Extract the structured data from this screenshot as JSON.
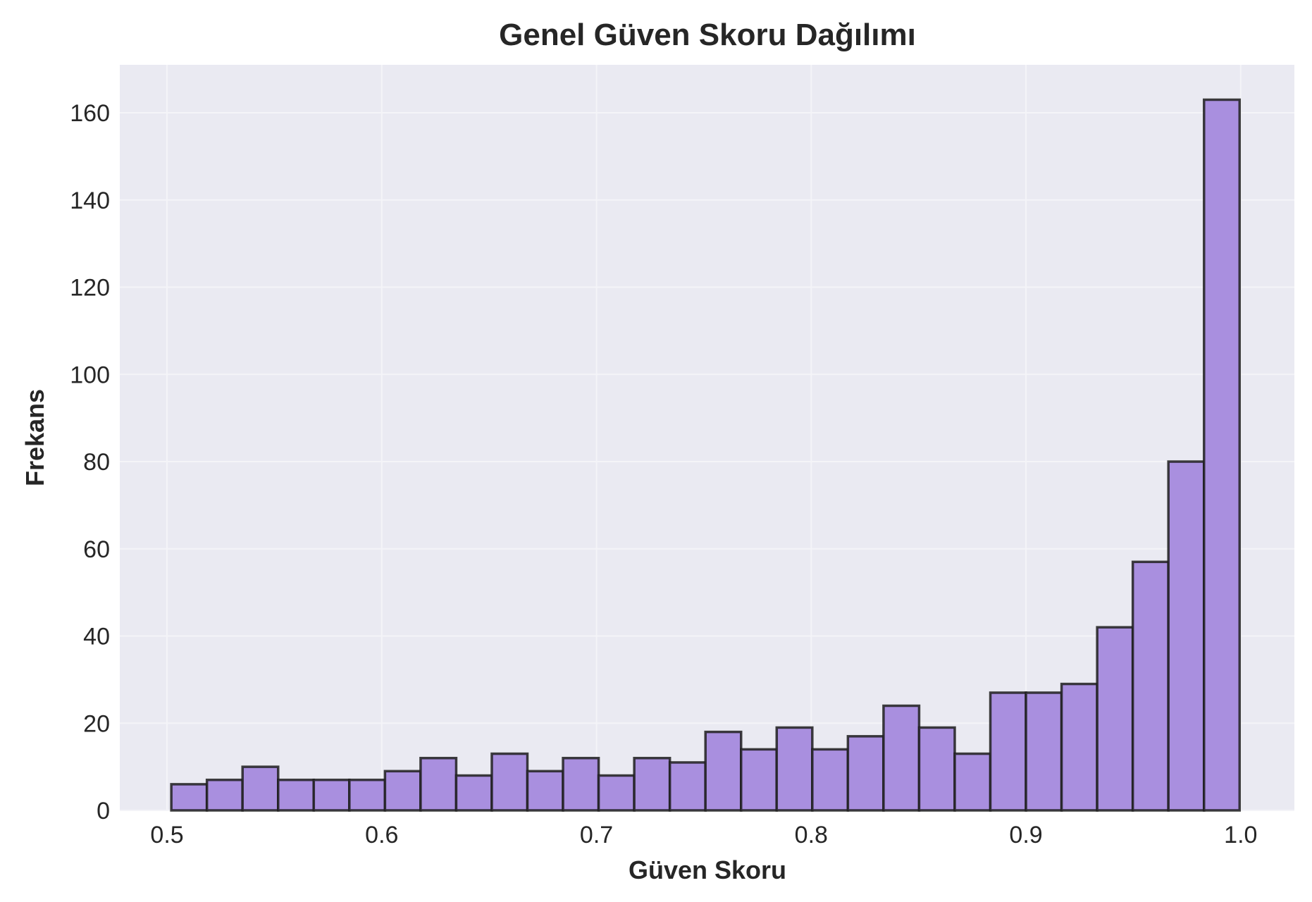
{
  "chart_data": {
    "type": "bar",
    "title": "Genel Güven Skoru Dağılımı",
    "xlabel": "Güven Skoru",
    "ylabel": "Frekans",
    "xlim": [
      0.478,
      1.025
    ],
    "ylim": [
      0,
      171
    ],
    "xticks": [
      0.5,
      0.6,
      0.7,
      0.8,
      0.9,
      1.0
    ],
    "xtick_labels": [
      "0.5",
      "0.6",
      "0.7",
      "0.8",
      "0.9",
      "1.0"
    ],
    "yticks": [
      0,
      20,
      40,
      60,
      80,
      100,
      120,
      140,
      160
    ],
    "ytick_labels": [
      "0",
      "20",
      "40",
      "60",
      "80",
      "100",
      "120",
      "140",
      "160"
    ],
    "grid": true,
    "bin_start": 0.502,
    "bin_end": 0.9995,
    "values": [
      6,
      7,
      10,
      7,
      7,
      7,
      9,
      12,
      8,
      13,
      9,
      12,
      8,
      12,
      11,
      18,
      14,
      19,
      14,
      17,
      24,
      19,
      13,
      27,
      27,
      29,
      42,
      57,
      80,
      163
    ],
    "colors": {
      "bar_fill": "#a98fdf",
      "bar_edge": "#1f1f1f",
      "plot_background": "#eaeaf2",
      "grid": "#f4f4f8",
      "text": "#262626"
    }
  }
}
